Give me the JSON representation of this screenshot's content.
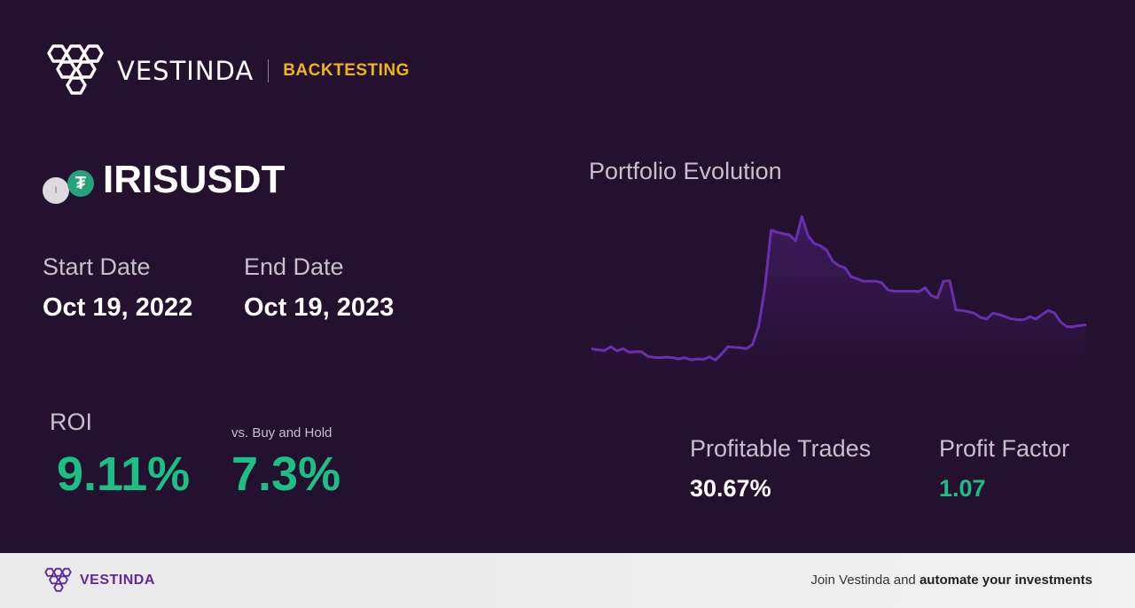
{
  "brand": {
    "name": "VESTINDA",
    "tag": "BACKTESTING"
  },
  "pair": {
    "name": "IRISUSDT",
    "coin_a_icon": "iris-coin-icon",
    "coin_b_icon": "tether-coin-icon",
    "coin_a_glyph": "I",
    "coin_b_glyph": "₮"
  },
  "dates": {
    "start_label": "Start Date",
    "start_value": "Oct 19, 2022",
    "end_label": "End Date",
    "end_value": "Oct 19, 2023"
  },
  "roi": {
    "label": "ROI",
    "value": "9.11%",
    "vs_label": "vs. Buy and Hold",
    "vs_value": "7.3%"
  },
  "chart": {
    "title": "Portfolio Evolution"
  },
  "chart_data": {
    "type": "line",
    "title": "Portfolio Evolution",
    "xlabel": "",
    "ylabel": "",
    "grid": false,
    "line_color": "#6a2fb0",
    "values": [
      100.5,
      100.0,
      99.8,
      101.5,
      99.6,
      100.6,
      99.0,
      99.3,
      99.2,
      97.2,
      96.7,
      96.6,
      96.8,
      96.6,
      96.0,
      96.6,
      95.6,
      96.0,
      95.8,
      96.9,
      95.5,
      98.3,
      101.5,
      101.2,
      101.0,
      100.6,
      102.5,
      111.0,
      128.0,
      154.0,
      153.0,
      152.4,
      151.8,
      149.2,
      160.0,
      151.5,
      148.0,
      147.0,
      145.0,
      140.0,
      138.0,
      137.0,
      133.0,
      132.0,
      131.0,
      131.0,
      131.0,
      130.2,
      127.0,
      126.5,
      126.5,
      126.5,
      126.5,
      126.3,
      128.0,
      124.5,
      123.5,
      131.0,
      131.2,
      118.0,
      117.8,
      117.3,
      116.5,
      114.6,
      114.0,
      116.6,
      116.0,
      115.0,
      114.0,
      113.6,
      113.6,
      115.0,
      114.0,
      116.0,
      117.8,
      116.6,
      112.6,
      110.5,
      110.5,
      111.0,
      111.3
    ],
    "ylim": [
      90,
      165
    ]
  },
  "stats": {
    "profitable_label": "Profitable Trades",
    "profitable_value": "30.67%",
    "pf_label": "Profit Factor",
    "pf_value": "1.07"
  },
  "footer": {
    "brand": "VESTINDA",
    "cta_prefix": "Join Vestinda and ",
    "cta_bold": "automate your investments"
  },
  "colors": {
    "background": "#24102f",
    "accent": "#f2b413",
    "positive": "#1cc084",
    "line": "#6a2fb0"
  }
}
